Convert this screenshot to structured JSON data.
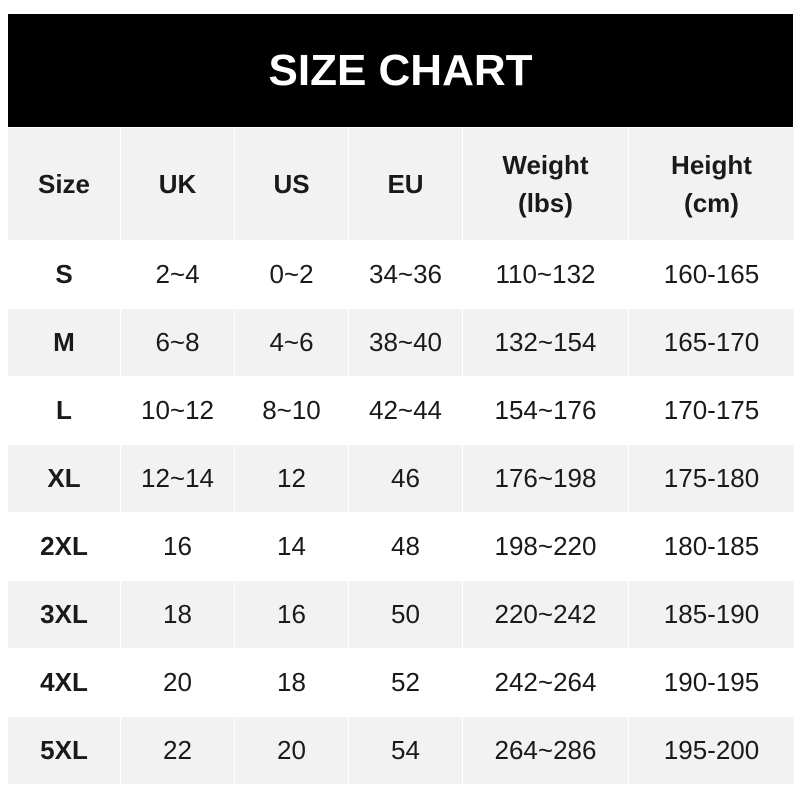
{
  "title": "SIZE CHART",
  "headers": [
    "Size",
    "UK",
    "US",
    "EU",
    "Weight\n(lbs)",
    "Height\n(cm)"
  ],
  "rows": [
    [
      "S",
      "2~4",
      "0~2",
      "34~36",
      "110~132",
      "160-165"
    ],
    [
      "M",
      "6~8",
      "4~6",
      "38~40",
      "132~154",
      "165-170"
    ],
    [
      "L",
      "10~12",
      "8~10",
      "42~44",
      "154~176",
      "170-175"
    ],
    [
      "XL",
      "12~14",
      "12",
      "46",
      "176~198",
      "175-180"
    ],
    [
      "2XL",
      "16",
      "14",
      "48",
      "198~220",
      "180-185"
    ],
    [
      "3XL",
      "18",
      "16",
      "50",
      "220~242",
      "185-190"
    ],
    [
      "4XL",
      "20",
      "18",
      "52",
      "242~264",
      "190-195"
    ],
    [
      "5XL",
      "22",
      "20",
      "54",
      "264~286",
      "195-200"
    ]
  ]
}
